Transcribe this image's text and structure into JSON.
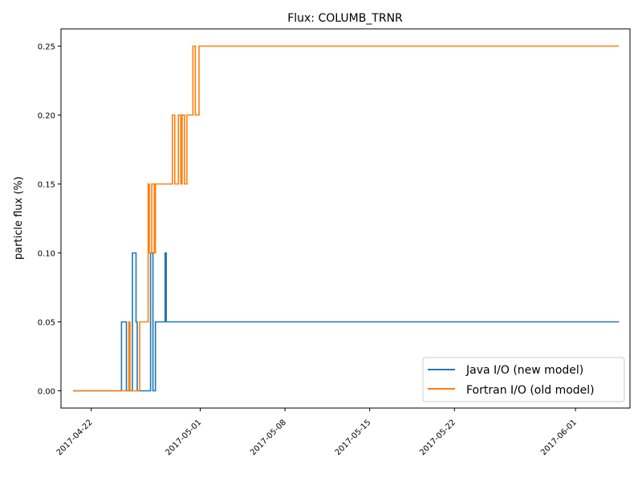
{
  "chart_data": {
    "type": "line",
    "title": "Flux: COLUMB_TRNR",
    "xlabel": "",
    "ylabel": "particle flux (%)",
    "x_ticks": [
      "2017-04-22",
      "2017-05-01",
      "2017-05-08",
      "2017-05-15",
      "2017-05-22",
      "2017-06-01"
    ],
    "y_ticks": [
      "0.00",
      "0.05",
      "0.10",
      "0.15",
      "0.20",
      "0.25"
    ],
    "xlim": [
      "2017-04-19T12:00",
      "2017-06-05T12:00"
    ],
    "ylim": [
      -0.0125,
      0.2625
    ],
    "grid": false,
    "legend_position": "lower-right",
    "step": "post",
    "series": [
      {
        "name": "Java I/O (new model)",
        "color": "#1f77b4",
        "x": [
          "2017-04-20T12:00",
          "2017-04-24T12:00",
          "2017-04-24T21:36",
          "2017-04-25T09:36",
          "2017-04-25T16:48",
          "2017-04-25T19:12",
          "2017-04-26T21:36",
          "2017-04-27T02:24",
          "2017-04-27T07:12",
          "2017-04-27T12:00",
          "2017-04-28T02:24",
          "2017-04-28T04:48",
          "2017-06-04T14:24"
        ],
        "values": [
          0.0,
          0.05,
          0.0,
          0.1,
          0.05,
          0.0,
          0.1,
          0.0,
          0.05,
          0.05,
          0.1,
          0.05,
          0.05
        ]
      },
      {
        "name": "Fortran I/O (old model)",
        "color": "#ff7f0e",
        "x": [
          "2017-04-20T12:00",
          "2017-04-25T02:24",
          "2017-04-25T04:48",
          "2017-04-26T00:00",
          "2017-04-26T16:48",
          "2017-04-26T19:12",
          "2017-04-27T00:00",
          "2017-04-27T04:48",
          "2017-04-27T07:12",
          "2017-04-27T09:36",
          "2017-04-27T12:00",
          "2017-04-27T14:24",
          "2017-04-28T16:48",
          "2017-04-28T21:36",
          "2017-04-29T04:48",
          "2017-04-29T09:36",
          "2017-04-29T12:00",
          "2017-04-29T16:48",
          "2017-04-29T21:36",
          "2017-04-30T09:36",
          "2017-04-30T14:24",
          "2017-04-30T21:36",
          "2017-06-04T14:24"
        ],
        "values": [
          0.0,
          0.05,
          0.0,
          0.05,
          0.15,
          0.1,
          0.15,
          0.1,
          0.15,
          0.15,
          0.15,
          0.15,
          0.2,
          0.15,
          0.2,
          0.15,
          0.2,
          0.15,
          0.2,
          0.25,
          0.2,
          0.25,
          0.25
        ]
      }
    ]
  }
}
